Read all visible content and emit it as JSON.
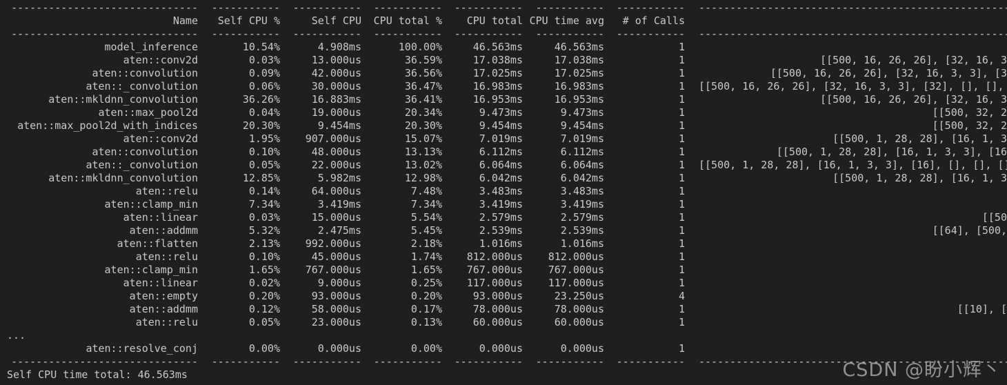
{
  "colors": {
    "background": "#1f1f1f",
    "text": "#c9c9c9",
    "watermark": "#a5a5a5"
  },
  "terminal": {
    "header_labels": [
      "Name",
      "Self CPU %",
      "Self CPU",
      "CPU total %",
      "CPU total",
      "CPU time avg",
      "# of Calls",
      ""
    ],
    "rows": [
      [
        "model_inference",
        "10.54%",
        "4.908ms",
        "100.00%",
        "46.563ms",
        "46.563ms",
        "1",
        ""
      ],
      [
        "aten::conv2d",
        "0.03%",
        "13.000us",
        "36.59%",
        "17.038ms",
        "17.038ms",
        "1",
        "[[500, 16, 26, 26], [32, 16, 3"
      ],
      [
        "aten::convolution",
        "0.09%",
        "42.000us",
        "36.56%",
        "17.025ms",
        "17.025ms",
        "1",
        "[[500, 16, 26, 26], [32, 16, 3, 3], [3"
      ],
      [
        "aten::_convolution",
        "0.06%",
        "30.000us",
        "36.47%",
        "16.983ms",
        "16.983ms",
        "1",
        "[[500, 16, 26, 26], [32, 16, 3, 3], [32], [], [], [],"
      ],
      [
        "aten::mkldnn_convolution",
        "36.26%",
        "16.883ms",
        "36.41%",
        "16.953ms",
        "16.953ms",
        "1",
        "[[500, 16, 26, 26], [32, 16, 3"
      ],
      [
        "aten::max_pool2d",
        "0.04%",
        "19.000us",
        "20.34%",
        "9.473ms",
        "9.473ms",
        "1",
        "[[500, 32, 2"
      ],
      [
        "aten::max_pool2d_with_indices",
        "20.30%",
        "9.454ms",
        "20.30%",
        "9.454ms",
        "9.454ms",
        "1",
        "[[500, 32, 2"
      ],
      [
        "aten::conv2d",
        "1.95%",
        "907.000us",
        "15.07%",
        "7.019ms",
        "7.019ms",
        "1",
        "[[500, 1, 28, 28], [16, 1, 3"
      ],
      [
        "aten::convolution",
        "0.10%",
        "48.000us",
        "13.13%",
        "6.112ms",
        "6.112ms",
        "1",
        "[[500, 1, 28, 28], [16, 1, 3, 3], [16"
      ],
      [
        "aten::_convolution",
        "0.05%",
        "22.000us",
        "13.02%",
        "6.064ms",
        "6.064ms",
        "1",
        "[[500, 1, 28, 28], [16, 1, 3, 3], [16], [], [], [],"
      ],
      [
        "aten::mkldnn_convolution",
        "12.85%",
        "5.982ms",
        "12.98%",
        "6.042ms",
        "6.042ms",
        "1",
        "[[500, 1, 28, 28], [16, 1, 3"
      ],
      [
        "aten::relu",
        "0.14%",
        "64.000us",
        "7.48%",
        "3.483ms",
        "3.483ms",
        "1",
        ""
      ],
      [
        "aten::clamp_min",
        "7.34%",
        "3.419ms",
        "7.34%",
        "3.419ms",
        "3.419ms",
        "1",
        ""
      ],
      [
        "aten::linear",
        "0.03%",
        "15.000us",
        "5.54%",
        "2.579ms",
        "2.579ms",
        "1",
        "[[50"
      ],
      [
        "aten::addmm",
        "5.32%",
        "2.475ms",
        "5.45%",
        "2.539ms",
        "2.539ms",
        "1",
        "[[64], [500,"
      ],
      [
        "aten::flatten",
        "2.13%",
        "992.000us",
        "2.18%",
        "1.016ms",
        "1.016ms",
        "1",
        ""
      ],
      [
        "aten::relu",
        "0.10%",
        "45.000us",
        "1.74%",
        "812.000us",
        "812.000us",
        "1",
        ""
      ],
      [
        "aten::clamp_min",
        "1.65%",
        "767.000us",
        "1.65%",
        "767.000us",
        "767.000us",
        "1",
        ""
      ],
      [
        "aten::linear",
        "0.02%",
        "9.000us",
        "0.25%",
        "117.000us",
        "117.000us",
        "1",
        ""
      ],
      [
        "aten::empty",
        "0.20%",
        "93.000us",
        "0.20%",
        "93.000us",
        "23.250us",
        "4",
        ""
      ],
      [
        "aten::addmm",
        "0.12%",
        "58.000us",
        "0.17%",
        "78.000us",
        "78.000us",
        "1",
        "[[10], ["
      ],
      [
        "aten::relu",
        "0.05%",
        "23.000us",
        "0.13%",
        "60.000us",
        "60.000us",
        "1",
        ""
      ]
    ],
    "ellipsis_line": "...",
    "tail_row": [
      "aten::resolve_conj",
      "0.00%",
      "0.000us",
      "0.00%",
      "0.000us",
      "0.000us",
      "1",
      ""
    ],
    "footer": "Self CPU time total: 46.563ms"
  },
  "watermark": {
    "text": "CSDN @盼小辉丶"
  }
}
